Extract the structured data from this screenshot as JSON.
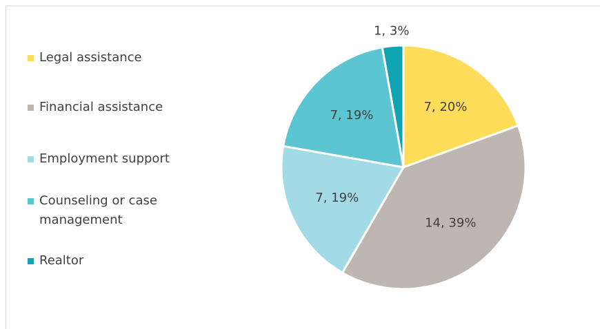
{
  "chart_data": {
    "type": "pie",
    "categories": [
      "Legal assistance",
      "Financial assistance",
      "Employment support",
      "Counseling or case management",
      "Realtor"
    ],
    "values": [
      7,
      14,
      7,
      7,
      1
    ],
    "value_labels": [
      "7, 20%",
      "14, 39%",
      "7, 19%",
      "7, 19%",
      "1, 3%"
    ],
    "colors": [
      "#FFDC5A",
      "#BEB7B1",
      "#A2DAE5",
      "#5BC5D1",
      "#10A3B2"
    ],
    "legend": "left"
  }
}
